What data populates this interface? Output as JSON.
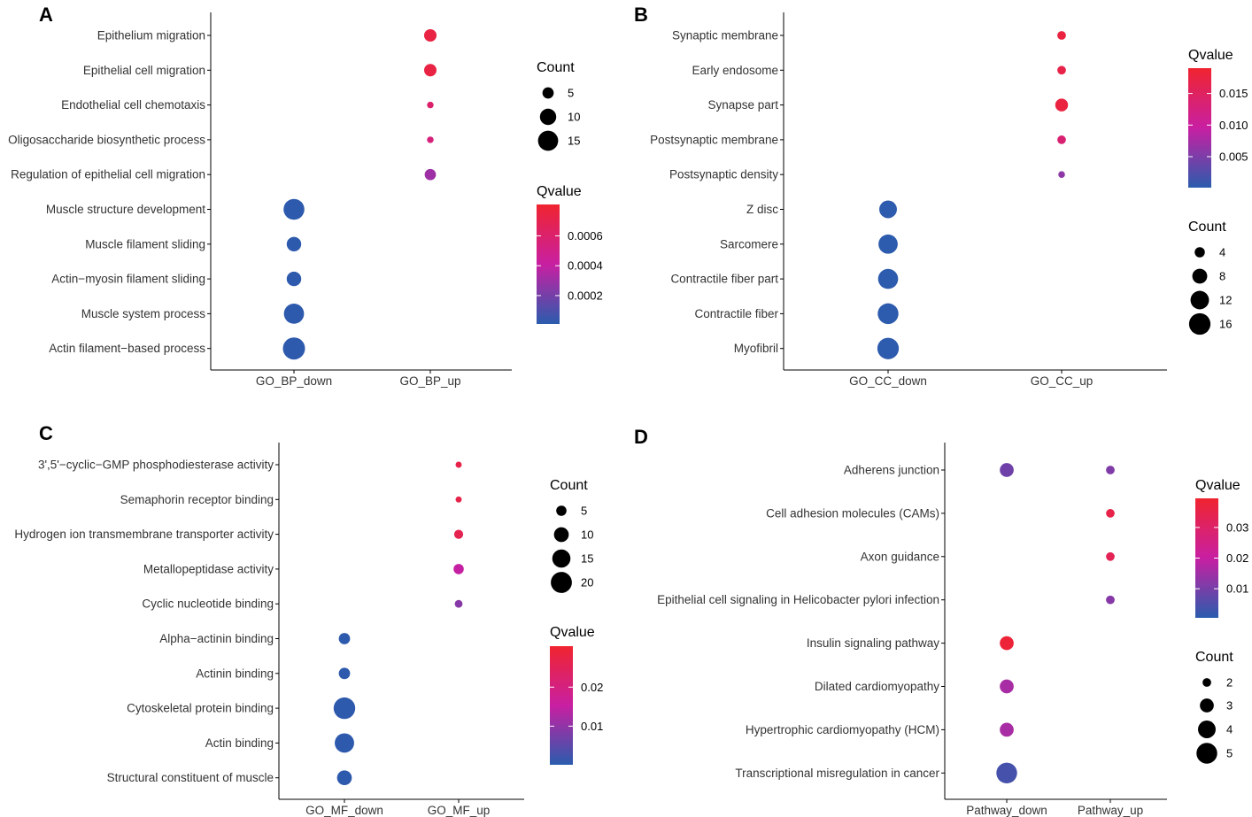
{
  "chart_data": [
    {
      "type": "scatter",
      "panel": "A",
      "categories_x": [
        "GO_BP_down",
        "GO_BP_up"
      ],
      "terms": [
        "Epithelium migration",
        "Epithelial cell migration",
        "Endothelial cell chemotaxis",
        "Oligosaccharide biosynthetic process",
        "Regulation of epithelial cell migration",
        "Muscle structure development",
        "Muscle filament sliding",
        "Actin−myosin filament sliding",
        "Muscle system process",
        "Actin filament−based process"
      ],
      "points": [
        {
          "term": "Epithelium migration",
          "x": "GO_BP_up",
          "count": 6,
          "qvalue": 0.00074
        },
        {
          "term": "Epithelial cell migration",
          "x": "GO_BP_up",
          "count": 6,
          "qvalue": 0.00074
        },
        {
          "term": "Endothelial cell chemotaxis",
          "x": "GO_BP_up",
          "count": 2,
          "qvalue": 0.0006
        },
        {
          "term": "Oligosaccharide biosynthetic process",
          "x": "GO_BP_up",
          "count": 2,
          "qvalue": 0.00055
        },
        {
          "term": "Regulation of epithelial cell migration",
          "x": "GO_BP_up",
          "count": 5,
          "qvalue": 0.0003
        },
        {
          "term": "Muscle structure development",
          "x": "GO_BP_down",
          "count": 16,
          "qvalue": 2e-05
        },
        {
          "term": "Muscle filament sliding",
          "x": "GO_BP_down",
          "count": 8,
          "qvalue": 2e-05
        },
        {
          "term": "Actin−myosin filament sliding",
          "x": "GO_BP_down",
          "count": 8,
          "qvalue": 2e-05
        },
        {
          "term": "Muscle system process",
          "x": "GO_BP_down",
          "count": 15,
          "qvalue": 2e-05
        },
        {
          "term": "Actin filament−based process",
          "x": "GO_BP_down",
          "count": 18,
          "qvalue": 2e-05
        }
      ],
      "count_legend": {
        "title": "Count",
        "values": [
          5,
          10,
          15
        ]
      },
      "qvalue_legend": {
        "title": "Qvalue",
        "range": [
          1e-05,
          0.00081
        ],
        "ticks": [
          0.0002,
          0.0004,
          0.0006
        ],
        "tick_labels": [
          "0.0002",
          "0.0004",
          "0.0006"
        ]
      },
      "count_range": [
        1,
        18
      ]
    },
    {
      "type": "scatter",
      "panel": "B",
      "categories_x": [
        "GO_CC_down",
        "GO_CC_up"
      ],
      "terms": [
        "Synaptic membrane",
        "Early endosome",
        "Synapse part",
        "Postsynaptic membrane",
        "Postsynaptic density",
        "Z disc",
        "Sarcomere",
        "Contractile fiber part",
        "Contractile fiber",
        "Myofibril"
      ],
      "points": [
        {
          "term": "Synaptic membrane",
          "x": "GO_CC_up",
          "count": 3,
          "qvalue": 0.0175
        },
        {
          "term": "Early endosome",
          "x": "GO_CC_up",
          "count": 3,
          "qvalue": 0.0168
        },
        {
          "term": "Synapse part",
          "x": "GO_CC_up",
          "count": 6,
          "qvalue": 0.0175
        },
        {
          "term": "Postsynaptic membrane",
          "x": "GO_CC_up",
          "count": 3,
          "qvalue": 0.0135
        },
        {
          "term": "Postsynaptic density",
          "x": "GO_CC_up",
          "count": 2,
          "qvalue": 0.006
        },
        {
          "term": "Z disc",
          "x": "GO_CC_down",
          "count": 11,
          "qvalue": 0.0003
        },
        {
          "term": "Sarcomere",
          "x": "GO_CC_down",
          "count": 13,
          "qvalue": 0.0003
        },
        {
          "term": "Contractile fiber part",
          "x": "GO_CC_down",
          "count": 14,
          "qvalue": 0.0003
        },
        {
          "term": "Contractile fiber",
          "x": "GO_CC_down",
          "count": 15,
          "qvalue": 0.0003
        },
        {
          "term": "Myofibril",
          "x": "GO_CC_down",
          "count": 16,
          "qvalue": 0.0003
        }
      ],
      "count_legend": {
        "title": "Count",
        "values": [
          4,
          8,
          12,
          16
        ]
      },
      "qvalue_legend": {
        "title": "Qvalue",
        "range": [
          0.0001,
          0.019
        ],
        "ticks": [
          0.005,
          0.01,
          0.015
        ],
        "tick_labels": [
          "0.005",
          "0.010",
          "0.015"
        ]
      },
      "count_range": [
        1,
        17
      ]
    },
    {
      "type": "scatter",
      "panel": "C",
      "categories_x": [
        "GO_MF_down",
        "GO_MF_up"
      ],
      "terms": [
        "3',5'−cyclic−GMP phosphodiesterase activity",
        "Semaphorin receptor binding",
        "Hydrogen ion transmembrane transporter activity",
        "Metallopeptidase activity",
        "Cyclic nucleotide binding",
        "Alpha−actinin binding",
        "Actinin binding",
        "Cytoskeletal protein binding",
        "Actin binding",
        "Structural constituent of muscle"
      ],
      "points": [
        {
          "term": "3',5'−cyclic−GMP phosphodiesterase activity",
          "x": "GO_MF_up",
          "count": 2,
          "qvalue": 0.027
        },
        {
          "term": "Semaphorin receptor binding",
          "x": "GO_MF_up",
          "count": 2,
          "qvalue": 0.027
        },
        {
          "term": "Hydrogen ion transmembrane transporter activity",
          "x": "GO_MF_up",
          "count": 4,
          "qvalue": 0.026
        },
        {
          "term": "Metallopeptidase activity",
          "x": "GO_MF_up",
          "count": 5,
          "qvalue": 0.015
        },
        {
          "term": "Cyclic nucleotide binding",
          "x": "GO_MF_up",
          "count": 3,
          "qvalue": 0.009
        },
        {
          "term": "Alpha−actinin binding",
          "x": "GO_MF_down",
          "count": 6,
          "qvalue": 0.0005
        },
        {
          "term": "Actinin binding",
          "x": "GO_MF_down",
          "count": 6,
          "qvalue": 0.0005
        },
        {
          "term": "Cytoskeletal protein binding",
          "x": "GO_MF_down",
          "count": 21,
          "qvalue": 0.0005
        },
        {
          "term": "Actin binding",
          "x": "GO_MF_down",
          "count": 17,
          "qvalue": 0.0005
        },
        {
          "term": "Structural constituent of muscle",
          "x": "GO_MF_down",
          "count": 10,
          "qvalue": 0.0005
        }
      ],
      "count_legend": {
        "title": "Count",
        "values": [
          5,
          10,
          15,
          20
        ]
      },
      "qvalue_legend": {
        "title": "Qvalue",
        "range": [
          0.0001,
          0.0305
        ],
        "ticks": [
          0.01,
          0.02
        ],
        "tick_labels": [
          "0.01",
          "0.02"
        ]
      },
      "count_range": [
        1,
        22
      ]
    },
    {
      "type": "scatter",
      "panel": "D",
      "categories_x": [
        "Pathway_down",
        "Pathway_up"
      ],
      "terms": [
        "Adherens junction",
        "Cell adhesion molecules (CAMs)",
        "Axon guidance",
        "Epithelial cell signaling in Helicobacter pylori infection",
        "Insulin signaling pathway",
        "Dilated cardiomyopathy",
        "Hypertrophic cardiomyopathy (HCM)",
        "Transcriptional misregulation in cancer"
      ],
      "points": [
        {
          "term": "Adherens junction",
          "x": "Pathway_down",
          "count": 3,
          "qvalue": 0.009
        },
        {
          "term": "Adherens junction",
          "x": "Pathway_up",
          "count": 2,
          "qvalue": 0.011
        },
        {
          "term": "Cell adhesion molecules (CAMs)",
          "x": "Pathway_up",
          "count": 2,
          "qvalue": 0.035
        },
        {
          "term": "Axon guidance",
          "x": "Pathway_up",
          "count": 2,
          "qvalue": 0.033
        },
        {
          "term": "Epithelial cell signaling in Helicobacter pylori infection",
          "x": "Pathway_up",
          "count": 2,
          "qvalue": 0.012
        },
        {
          "term": "Insulin signaling pathway",
          "x": "Pathway_down",
          "count": 3,
          "qvalue": 0.038
        },
        {
          "term": "Dilated cardiomyopathy",
          "x": "Pathway_down",
          "count": 3,
          "qvalue": 0.016
        },
        {
          "term": "Hypertrophic cardiomyopathy (HCM)",
          "x": "Pathway_down",
          "count": 3,
          "qvalue": 0.016
        },
        {
          "term": "Transcriptional misregulation in cancer",
          "x": "Pathway_down",
          "count": 5,
          "qvalue": 0.004
        }
      ],
      "count_legend": {
        "title": "Count",
        "values": [
          2,
          3,
          4,
          5
        ]
      },
      "qvalue_legend": {
        "title": "Qvalue",
        "range": [
          0.0005,
          0.0395
        ],
        "ticks": [
          0.01,
          0.02,
          0.03
        ],
        "tick_labels": [
          "0.01",
          "0.02",
          "0.03"
        ]
      },
      "count_range": [
        1.5,
        5.5
      ]
    }
  ],
  "colors": {
    "low": "#2a5cad",
    "mid": "#c81fa2",
    "high": "#f0242f"
  }
}
